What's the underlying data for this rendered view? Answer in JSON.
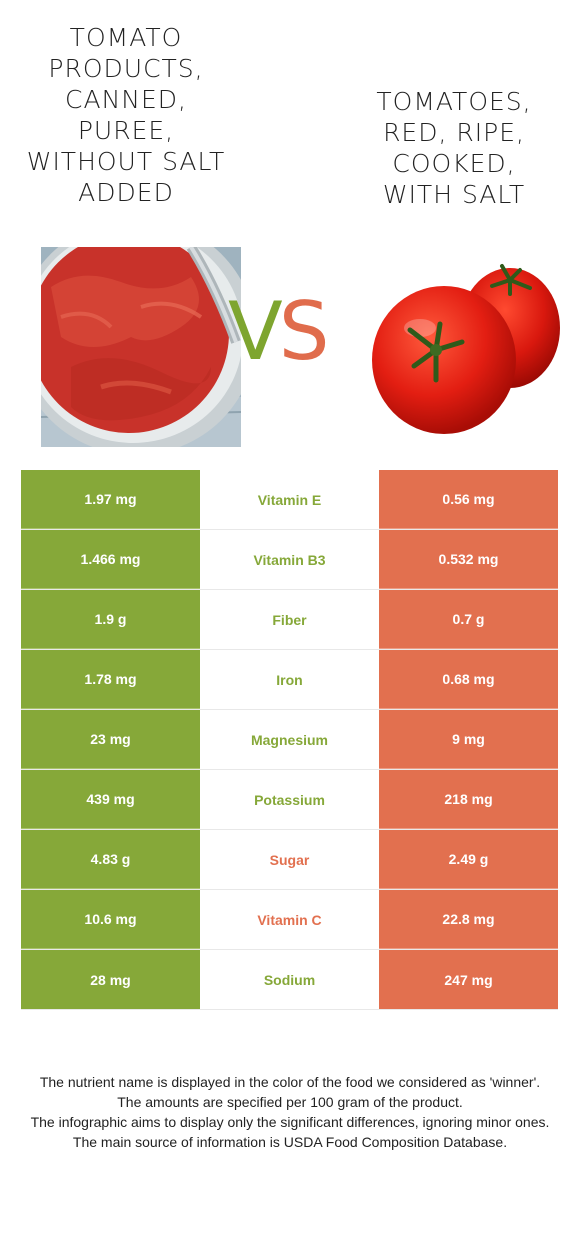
{
  "left_food": {
    "title": "TOMATO PRODUCTS, CANNED, PUREE, WITHOUT SALT ADDED"
  },
  "right_food": {
    "title": "TOMATOES, RED, RIPE, COOKED, WITH SALT"
  },
  "vs": {
    "v": "V",
    "s": "S"
  },
  "colors": {
    "left": "#86a839",
    "right": "#e2704f"
  },
  "rows": [
    {
      "left": "1.97 mg",
      "nutrient": "Vitamin E",
      "right": "0.56 mg",
      "winner": "left"
    },
    {
      "left": "1.466 mg",
      "nutrient": "Vitamin B3",
      "right": "0.532 mg",
      "winner": "left"
    },
    {
      "left": "1.9 g",
      "nutrient": "Fiber",
      "right": "0.7 g",
      "winner": "left"
    },
    {
      "left": "1.78 mg",
      "nutrient": "Iron",
      "right": "0.68 mg",
      "winner": "left"
    },
    {
      "left": "23 mg",
      "nutrient": "Magnesium",
      "right": "9 mg",
      "winner": "left"
    },
    {
      "left": "439 mg",
      "nutrient": "Potassium",
      "right": "218 mg",
      "winner": "left"
    },
    {
      "left": "4.83 g",
      "nutrient": "Sugar",
      "right": "2.49 g",
      "winner": "right"
    },
    {
      "left": "10.6 mg",
      "nutrient": "Vitamin C",
      "right": "22.8 mg",
      "winner": "right"
    },
    {
      "left": "28 mg",
      "nutrient": "Sodium",
      "right": "247 mg",
      "winner": "left"
    }
  ],
  "footer": [
    "The nutrient name is displayed in the color of the food we considered as 'winner'.",
    "The amounts are specified per 100 gram of the product.",
    "The infographic aims to display only the significant differences, ignoring minor ones.",
    "The main source of information is USDA Food Composition Database."
  ]
}
